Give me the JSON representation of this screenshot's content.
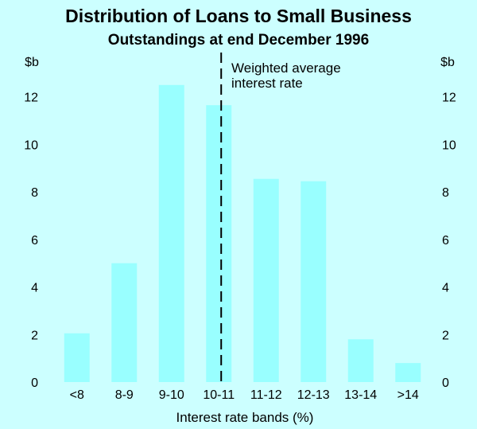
{
  "chart_data": {
    "type": "bar",
    "title": "Distribution of Loans to Small Business",
    "subtitle": "Outstandings at end December 1996",
    "categories": [
      "<8",
      "8-9",
      "9-10",
      "10-11",
      "11-12",
      "12-13",
      "13-14",
      ">14"
    ],
    "values": [
      2.05,
      5.0,
      12.5,
      11.65,
      8.55,
      8.45,
      1.8,
      0.8
    ],
    "xlabel": "Interest rate bands (%)",
    "ylabel_left": "$b",
    "ylabel_right": "$b",
    "ylim": [
      0,
      14
    ],
    "yticks": [
      0,
      2,
      4,
      6,
      8,
      10,
      12
    ],
    "bar_color": "#99ffff",
    "grid": false,
    "annotation": {
      "line1": "Weighted average",
      "line2": "interest rate",
      "x_value": 10.55
    }
  }
}
